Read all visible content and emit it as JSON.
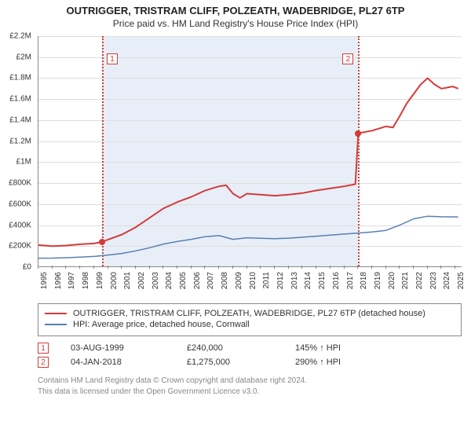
{
  "titles": {
    "line1": "OUTRIGGER, TRISTRAM CLIFF, POLZEATH, WADEBRIDGE, PL27 6TP",
    "line2": "Price paid vs. HM Land Registry's House Price Index (HPI)"
  },
  "chart": {
    "type": "line",
    "background_color": "#ffffff",
    "grid_color": "#dddddd",
    "axis_color": "#888888",
    "shade": {
      "start_year": 1999.58,
      "end_year": 2018.01,
      "color": "#e8eef7"
    },
    "x": {
      "min": 1995.0,
      "max": 2025.5,
      "ticks": [
        1995,
        1996,
        1997,
        1998,
        1999,
        2000,
        2001,
        2002,
        2003,
        2004,
        2005,
        2006,
        2007,
        2008,
        2009,
        2010,
        2011,
        2012,
        2013,
        2014,
        2015,
        2016,
        2017,
        2018,
        2019,
        2020,
        2021,
        2022,
        2023,
        2024,
        2025
      ],
      "tick_fontsize": 10,
      "rotation_deg": -90
    },
    "y": {
      "min": 0,
      "max": 2200000,
      "ticks": [
        0,
        200000,
        400000,
        600000,
        800000,
        1000000,
        1200000,
        1400000,
        1600000,
        1800000,
        2000000,
        2200000
      ],
      "tick_labels": [
        "£0",
        "£200K",
        "£400K",
        "£600K",
        "£800K",
        "£1M",
        "£1.2M",
        "£1.4M",
        "£1.6M",
        "£1.8M",
        "£2M",
        "£2.2M"
      ],
      "tick_fontsize": 10
    },
    "series": [
      {
        "id": "property",
        "label": "OUTRIGGER, TRISTRAM CLIFF, POLZEATH, WADEBRIDGE, PL27 6TP (detached house)",
        "color": "#d43b3b",
        "line_width": 2,
        "points": [
          [
            1995.0,
            210000
          ],
          [
            1996.0,
            200000
          ],
          [
            1997.0,
            206000
          ],
          [
            1998.0,
            218000
          ],
          [
            1999.0,
            225000
          ],
          [
            1999.58,
            240000
          ],
          [
            2000.0,
            262000
          ],
          [
            2001.0,
            310000
          ],
          [
            2002.0,
            380000
          ],
          [
            2003.0,
            470000
          ],
          [
            2004.0,
            560000
          ],
          [
            2005.0,
            620000
          ],
          [
            2006.0,
            670000
          ],
          [
            2007.0,
            730000
          ],
          [
            2008.0,
            770000
          ],
          [
            2008.5,
            780000
          ],
          [
            2009.0,
            700000
          ],
          [
            2009.5,
            660000
          ],
          [
            2010.0,
            700000
          ],
          [
            2011.0,
            690000
          ],
          [
            2012.0,
            680000
          ],
          [
            2013.0,
            690000
          ],
          [
            2014.0,
            705000
          ],
          [
            2015.0,
            730000
          ],
          [
            2016.0,
            750000
          ],
          [
            2017.0,
            770000
          ],
          [
            2017.8,
            790000
          ],
          [
            2018.01,
            1275000
          ],
          [
            2019.0,
            1300000
          ],
          [
            2020.0,
            1340000
          ],
          [
            2020.5,
            1330000
          ],
          [
            2021.0,
            1440000
          ],
          [
            2021.5,
            1560000
          ],
          [
            2022.0,
            1650000
          ],
          [
            2022.5,
            1740000
          ],
          [
            2023.0,
            1800000
          ],
          [
            2023.5,
            1740000
          ],
          [
            2024.0,
            1700000
          ],
          [
            2024.8,
            1720000
          ],
          [
            2025.2,
            1700000
          ]
        ]
      },
      {
        "id": "hpi",
        "label": "HPI: Average price, detached house, Cornwall",
        "color": "#5b7fb2",
        "line_width": 1.5,
        "points": [
          [
            1995.0,
            85000
          ],
          [
            1996.0,
            86000
          ],
          [
            1997.0,
            90000
          ],
          [
            1998.0,
            95000
          ],
          [
            1999.0,
            102000
          ],
          [
            2000.0,
            115000
          ],
          [
            2001.0,
            130000
          ],
          [
            2002.0,
            155000
          ],
          [
            2003.0,
            185000
          ],
          [
            2004.0,
            220000
          ],
          [
            2005.0,
            245000
          ],
          [
            2006.0,
            265000
          ],
          [
            2007.0,
            290000
          ],
          [
            2008.0,
            300000
          ],
          [
            2009.0,
            265000
          ],
          [
            2010.0,
            280000
          ],
          [
            2011.0,
            275000
          ],
          [
            2012.0,
            272000
          ],
          [
            2013.0,
            276000
          ],
          [
            2014.0,
            285000
          ],
          [
            2015.0,
            295000
          ],
          [
            2016.0,
            305000
          ],
          [
            2017.0,
            315000
          ],
          [
            2018.0,
            325000
          ],
          [
            2019.0,
            335000
          ],
          [
            2020.0,
            350000
          ],
          [
            2021.0,
            400000
          ],
          [
            2022.0,
            460000
          ],
          [
            2023.0,
            485000
          ],
          [
            2024.0,
            480000
          ],
          [
            2025.2,
            478000
          ]
        ]
      }
    ],
    "event_markers": [
      {
        "n": "1",
        "year": 1999.58,
        "price": 240000
      },
      {
        "n": "2",
        "year": 2018.01,
        "price": 1275000
      }
    ]
  },
  "legend": {
    "items": [
      {
        "series_id": "property"
      },
      {
        "series_id": "hpi"
      }
    ],
    "fontsize": 11,
    "border_color": "#888888"
  },
  "marker_table": {
    "rows": [
      {
        "n": "1",
        "date": "03-AUG-1999",
        "price": "£240,000",
        "delta": "145% ↑ HPI"
      },
      {
        "n": "2",
        "date": "04-JAN-2018",
        "price": "£1,275,000",
        "delta": "290% ↑ HPI"
      }
    ],
    "fontsize": 11,
    "arrow_glyph": "↑"
  },
  "footer": {
    "line1": "Contains HM Land Registry data © Crown copyright and database right 2024.",
    "line2": "This data is licensed under the Open Government Licence v3.0.",
    "color": "#888888",
    "fontsize": 10
  }
}
